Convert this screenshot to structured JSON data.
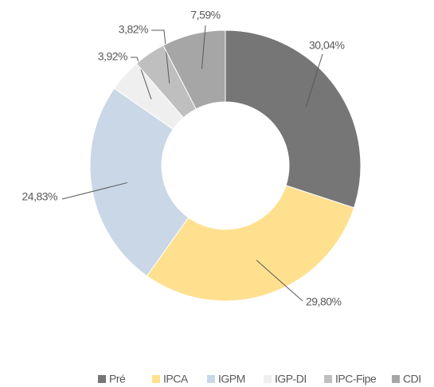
{
  "chart_data": {
    "type": "donut",
    "categories": [
      "Pré",
      "IPCA",
      "IGPM",
      "IGP-DI",
      "IPC-Fipe",
      "CDI"
    ],
    "values": [
      30.04,
      29.8,
      24.83,
      3.92,
      3.82,
      7.59
    ],
    "value_labels": [
      "30,04%",
      "29,80%",
      "24,83%",
      "3,92%",
      "3,82%",
      "7,59%"
    ],
    "colors": [
      "#767676",
      "#ffe08f",
      "#c9d7e6",
      "#efefef",
      "#bfbfbf",
      "#a6a6a6"
    ],
    "legend": "bottom"
  }
}
